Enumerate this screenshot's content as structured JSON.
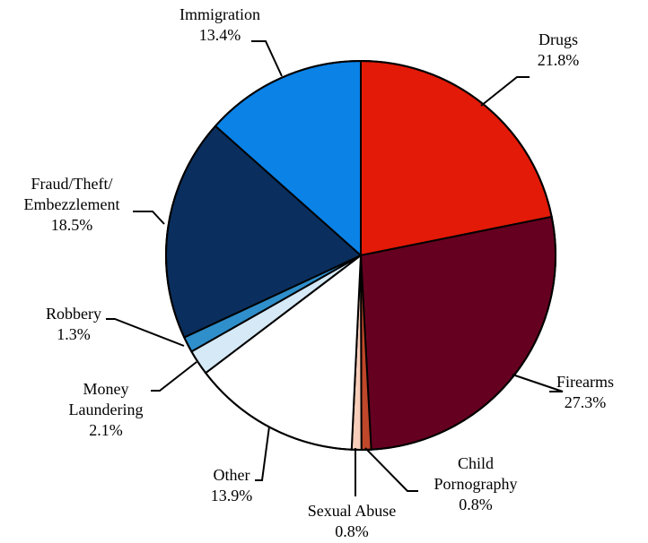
{
  "chart_data": {
    "type": "pie",
    "title": "",
    "start_angle_deg": 0,
    "direction": "clockwise",
    "slices": [
      {
        "label_lines": [
          "Drugs"
        ],
        "value_label": "21.8%",
        "value": 21.8,
        "color": "#E21A07"
      },
      {
        "label_lines": [
          "Firearms"
        ],
        "value_label": "27.3%",
        "value": 27.3,
        "color": "#660020"
      },
      {
        "label_lines": [
          "Child",
          "Pornography"
        ],
        "value_label": "0.8%",
        "value": 0.8,
        "color": "#C0472A"
      },
      {
        "label_lines": [
          "Sexual Abuse"
        ],
        "value_label": "0.8%",
        "value": 0.8,
        "color": "#F8CEBA"
      },
      {
        "label_lines": [
          "Other"
        ],
        "value_label": "13.9%",
        "value": 13.9,
        "color": "#FFFFFF"
      },
      {
        "label_lines": [
          "Money",
          "Laundering"
        ],
        "value_label": "2.1%",
        "value": 2.1,
        "color": "#D6E9F6"
      },
      {
        "label_lines": [
          "Robbery"
        ],
        "value_label": "1.3%",
        "value": 1.3,
        "color": "#2F8FCB"
      },
      {
        "label_lines": [
          "Fraud/Theft/",
          "Embezzlement"
        ],
        "value_label": "18.5%",
        "value": 18.5,
        "color": "#0A2F5E"
      },
      {
        "label_lines": [
          "Immigration"
        ],
        "value_label": "13.4%",
        "value": 13.4,
        "color": "#0B82E6"
      }
    ]
  }
}
